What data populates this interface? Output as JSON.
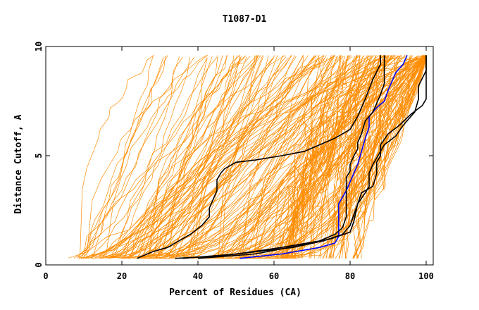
{
  "chart_data": {
    "type": "line",
    "title": "T1087-D1",
    "xlabel": "Percent of Residues (CA)",
    "ylabel": "Distance Cutoff, A",
    "xlim": [
      0,
      100
    ],
    "ylim": [
      0,
      10
    ],
    "x_ticks": [
      "0",
      "20",
      "40",
      "60",
      "80",
      "100"
    ],
    "y_ticks": [
      "0",
      "5",
      "10"
    ],
    "grid": false,
    "legend": "none",
    "colors": {
      "background_series": "#ff8c00",
      "highlight_black": "#000000",
      "highlight_blue": "#0000ff"
    },
    "series": [
      {
        "color": "#0000ff",
        "x": [
          51,
          62,
          72,
          76,
          77,
          77,
          79,
          80,
          81,
          82,
          83,
          84,
          85,
          85,
          87,
          89,
          90,
          91,
          92,
          94,
          95
        ],
        "y": [
          0.3,
          0.5,
          0.8,
          1.0,
          1.3,
          2.8,
          3.4,
          3.8,
          4.2,
          4.6,
          5.2,
          5.8,
          6.3,
          6.8,
          7.2,
          7.5,
          8.0,
          8.4,
          8.8,
          9.2,
          9.6
        ]
      },
      {
        "color": "#000000",
        "x": [
          24,
          28,
          32,
          35,
          38,
          41,
          43,
          43,
          44,
          45,
          45,
          46,
          47,
          50,
          55,
          62,
          68,
          72,
          76,
          80,
          82,
          84,
          86,
          88,
          88
        ],
        "y": [
          0.3,
          0.6,
          0.8,
          1.1,
          1.4,
          1.8,
          2.2,
          2.6,
          3.0,
          3.4,
          3.9,
          4.2,
          4.4,
          4.7,
          4.8,
          5.0,
          5.2,
          5.5,
          5.8,
          6.2,
          6.8,
          7.6,
          8.5,
          9.2,
          9.6
        ]
      },
      {
        "color": "#000000",
        "x": [
          36,
          50,
          62,
          72,
          76,
          78,
          79,
          79,
          79,
          80,
          80,
          81,
          82,
          82,
          83,
          84,
          86,
          87,
          88,
          89,
          89
        ],
        "y": [
          0.3,
          0.5,
          0.8,
          1.1,
          1.4,
          1.7,
          2.2,
          3.0,
          4.0,
          4.3,
          4.6,
          5.0,
          5.3,
          5.6,
          6.0,
          6.6,
          7.0,
          7.4,
          7.8,
          8.3,
          9.6
        ]
      },
      {
        "color": "#000000",
        "x": [
          40,
          55,
          67,
          75,
          80,
          81,
          82,
          84,
          85,
          85,
          86,
          87,
          88,
          89,
          92,
          94,
          97,
          98,
          98,
          100,
          100
        ],
        "y": [
          0.3,
          0.5,
          0.9,
          1.2,
          1.5,
          2.0,
          2.8,
          3.3,
          3.6,
          4.2,
          4.6,
          4.9,
          5.2,
          5.5,
          5.9,
          6.4,
          7.0,
          7.6,
          8.2,
          8.9,
          9.6
        ]
      },
      {
        "color": "#000000",
        "x": [
          34,
          45,
          55,
          65,
          73,
          78,
          80,
          81,
          82,
          83,
          86,
          87,
          87,
          88,
          88,
          90,
          93,
          96,
          99,
          100,
          100
        ],
        "y": [
          0.3,
          0.4,
          0.6,
          0.8,
          1.1,
          1.4,
          1.8,
          2.3,
          2.8,
          3.3,
          3.6,
          4.2,
          4.7,
          5.0,
          5.5,
          6.0,
          6.4,
          6.9,
          7.3,
          7.6,
          9.6
        ]
      }
    ]
  }
}
